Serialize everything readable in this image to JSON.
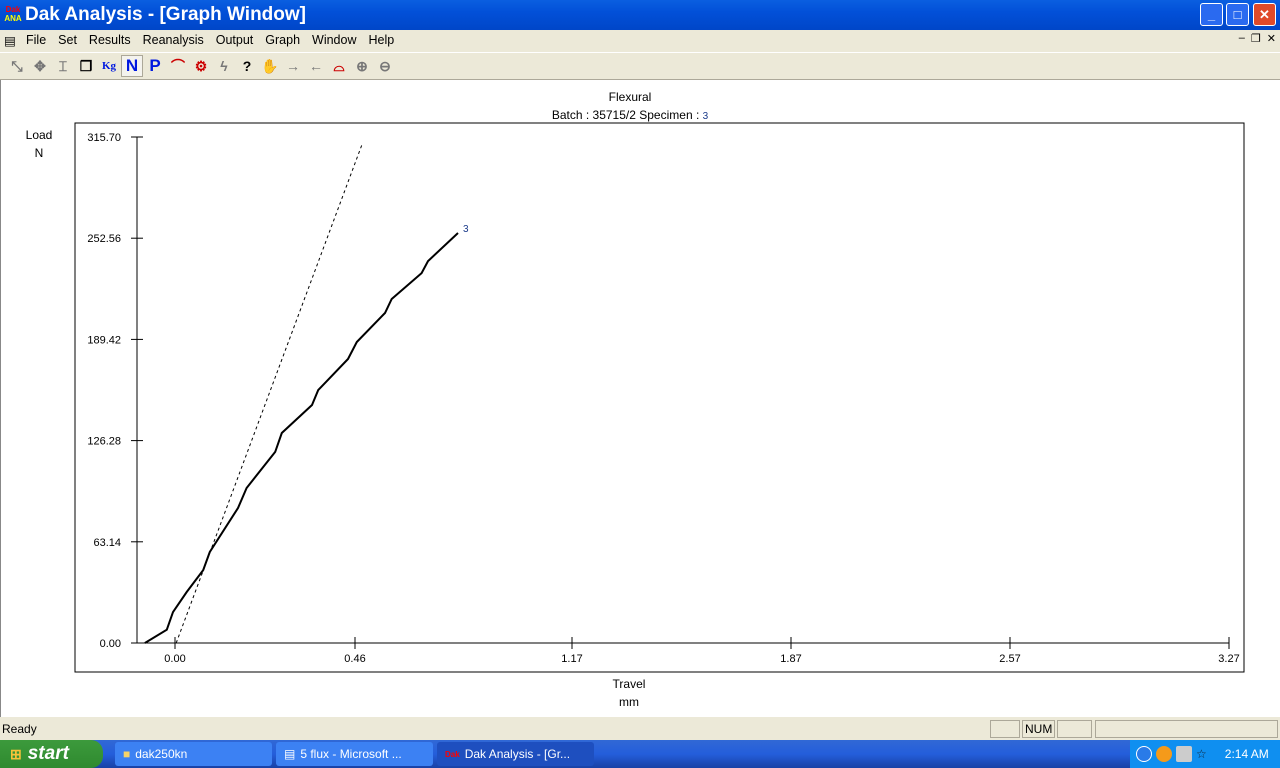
{
  "window": {
    "title": "Dak Analysis - [Graph Window]",
    "icon": "dak-ana-logo"
  },
  "menu": [
    "File",
    "Set",
    "Results",
    "Reanalysis",
    "Output",
    "Graph",
    "Window",
    "Help"
  ],
  "toolbar": [
    {
      "icon": "tool-1",
      "label": ""
    },
    {
      "icon": "tool-2",
      "label": ""
    },
    {
      "icon": "tool-3",
      "label": ""
    },
    {
      "icon": "copy-pages-icon",
      "label": ""
    },
    {
      "icon": "kg-unit",
      "label": "Kg"
    },
    {
      "icon": "newton-unit",
      "label": "N"
    },
    {
      "icon": "p-unit",
      "label": "P"
    },
    {
      "icon": "curve-icon",
      "label": ""
    },
    {
      "icon": "machine-icon",
      "label": ""
    },
    {
      "icon": "lightning-icon",
      "label": ""
    },
    {
      "icon": "help-pointer-icon",
      "label": ""
    },
    {
      "icon": "handshake-icon",
      "label": ""
    },
    {
      "icon": "arrow-right-icon",
      "label": ""
    },
    {
      "icon": "arrow-left-icon",
      "label": ""
    },
    {
      "icon": "curves-icon",
      "label": ""
    },
    {
      "icon": "zoom-in-icon",
      "label": ""
    },
    {
      "icon": "zoom-out-icon",
      "label": ""
    }
  ],
  "chart_data": {
    "type": "line",
    "title": "Flexural",
    "subtitle_batch_label": "Batch :",
    "batch": "35715/2",
    "specimen_label": "Specimen :",
    "specimen": "3",
    "ylabel": "Load",
    "yunit": "N",
    "xlabel": "Travel",
    "xunit": "mm",
    "yticks": [
      "0.00",
      "63.14",
      "126.28",
      "189.42",
      "252.56",
      "315.70"
    ],
    "xticks": [
      "0.00",
      "0.46",
      "1.17",
      "1.87",
      "2.57",
      "3.27"
    ],
    "ylim": [
      0,
      315.7
    ],
    "series": [
      {
        "name": "3",
        "style": "solid",
        "x": [
          -0.077,
          -0.021,
          -0.005,
          0.03,
          0.072,
          0.089,
          0.161,
          0.183,
          0.256,
          0.273,
          0.35,
          0.366,
          0.442,
          0.466,
          0.558,
          0.58,
          0.678,
          0.699,
          0.797
        ],
        "y": [
          0,
          8.3,
          19.3,
          31.8,
          45.5,
          56.8,
          84.2,
          96.7,
          119.2,
          131.0,
          148.5,
          157.8,
          177.2,
          187.8,
          205.9,
          214.6,
          230.8,
          238.3,
          255.8
        ]
      },
      {
        "style": "dashed",
        "x": [
          0.003,
          0.485
        ],
        "y": [
          0,
          312.0
        ]
      }
    ]
  },
  "status": {
    "text": "Ready",
    "num": "NUM"
  },
  "taskbar": {
    "start": "start",
    "tasks": [
      "dak250kn",
      "5 flux - Microsoft ...",
      "Dak Analysis - [Gr..."
    ],
    "clock": "2:14 AM"
  }
}
